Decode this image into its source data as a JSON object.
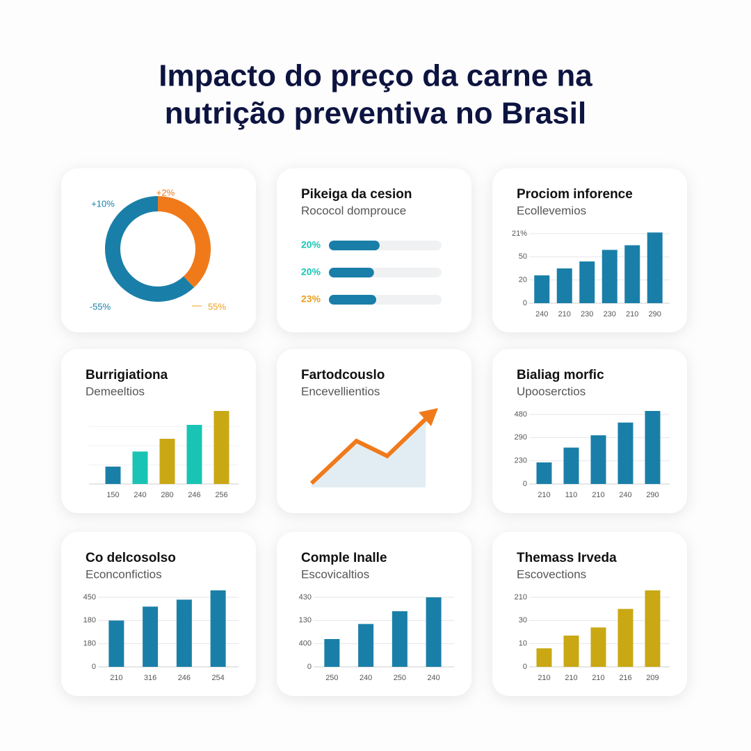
{
  "title": [
    "Impacto do preço da carne na",
    "nutrição preventiva no Brasil"
  ],
  "chart_data": [
    {
      "type": "pie",
      "donut": true,
      "values": [
        38,
        62
      ],
      "colors": [
        "#f07a1a",
        "#1a7fa8"
      ],
      "annotations": [
        "+10%",
        "+2%",
        "-55%",
        "55%"
      ],
      "annotation_colors": [
        "#1a7fa8",
        "#f07a1a",
        "#1a7fa8",
        "#e8a020"
      ]
    },
    {
      "type": "progress",
      "title": "Pikeiga da cesion",
      "subtitle": "Rococol domprouce",
      "categories": [
        "20%",
        "20%",
        "23%"
      ],
      "category_colors": [
        "#19c4b4",
        "#19c4b4",
        "#e8a020"
      ],
      "values": [
        45,
        40,
        42
      ],
      "xlim": [
        0,
        100
      ],
      "color": "#1a7fa8"
    },
    {
      "type": "bar",
      "title": "Prociom inforence",
      "subtitle": "Ecollevemios",
      "categories": [
        "240",
        "210",
        "230",
        "230",
        "210",
        "290"
      ],
      "values": [
        1.2,
        1.5,
        1.8,
        2.3,
        2.5,
        3.05
      ],
      "color": "#1a7fa8",
      "ylim": [
        0,
        3.3
      ],
      "yticks": [
        0,
        {
          "value": 1,
          "label": "20"
        },
        {
          "value": 2,
          "label": "50"
        },
        {
          "value": 3,
          "label": "21%"
        }
      ],
      "grid": true
    },
    {
      "type": "bar",
      "title": "Burrigiationa",
      "subtitle": "Demeeltios",
      "categories": [
        "150",
        "240",
        "280",
        "246",
        "256"
      ],
      "values": [
        0.75,
        1.4,
        1.95,
        2.55,
        3.15
      ],
      "colors": [
        "#1a7fa8",
        "#19c4b4",
        "#c9a814",
        "#19c4b4",
        "#c9a814"
      ],
      "ylim": [
        0,
        3.3
      ]
    },
    {
      "type": "area",
      "title": "Fartodcouslo",
      "subtitle": "Encevellientios",
      "values": [
        0,
        62,
        40,
        100
      ],
      "ylim": [
        0,
        110
      ],
      "color": "#f07a1a"
    },
    {
      "type": "bar",
      "title": "Bialiag morfic",
      "subtitle": "Upooserctios",
      "categories": [
        "210",
        "110",
        "210",
        "240",
        "290"
      ],
      "values": [
        0.93,
        1.57,
        2.1,
        2.65,
        3.15
      ],
      "color": "#1a7fa8",
      "ylim": [
        0,
        3.3
      ],
      "yticks": [
        0,
        {
          "value": 1,
          "label": "230"
        },
        {
          "value": 2,
          "label": "290"
        },
        {
          "value": 3,
          "label": "480"
        }
      ],
      "grid": true
    },
    {
      "type": "bar",
      "title": "Co delcosolso",
      "subtitle": "Econconfictios",
      "categories": [
        "210",
        "316",
        "246",
        "254"
      ],
      "values": [
        2.0,
        2.6,
        2.9,
        3.3
      ],
      "color": "#1a7fa8",
      "ylim": [
        0,
        3.3
      ],
      "yticks": [
        0,
        {
          "value": 1,
          "label": "180"
        },
        {
          "value": 2,
          "label": "180"
        },
        {
          "value": 3,
          "label": "450"
        }
      ],
      "grid": true
    },
    {
      "type": "bar",
      "title": "Comple Inalle",
      "subtitle": "Escovicaltios",
      "categories": [
        "250",
        "240",
        "250",
        "240"
      ],
      "values": [
        1.2,
        1.85,
        2.4,
        3.0
      ],
      "color": "#1a7fa8",
      "ylim": [
        0,
        3.3
      ],
      "yticks": [
        0,
        {
          "value": 1,
          "label": "400"
        },
        {
          "value": 2,
          "label": "130"
        },
        {
          "value": 3,
          "label": "430"
        }
      ],
      "grid": true
    },
    {
      "type": "bar",
      "title": "Themass Irveda",
      "subtitle": "Escovections",
      "categories": [
        "210",
        "210",
        "210",
        "216",
        "209"
      ],
      "values": [
        0.8,
        1.35,
        1.7,
        2.5,
        3.3
      ],
      "color": "#c9a814",
      "ylim": [
        0,
        3.3
      ],
      "yticks": [
        0,
        {
          "value": 1,
          "label": "10"
        },
        {
          "value": 2,
          "label": "30"
        },
        {
          "value": 3,
          "label": "210"
        }
      ],
      "grid": true
    }
  ]
}
